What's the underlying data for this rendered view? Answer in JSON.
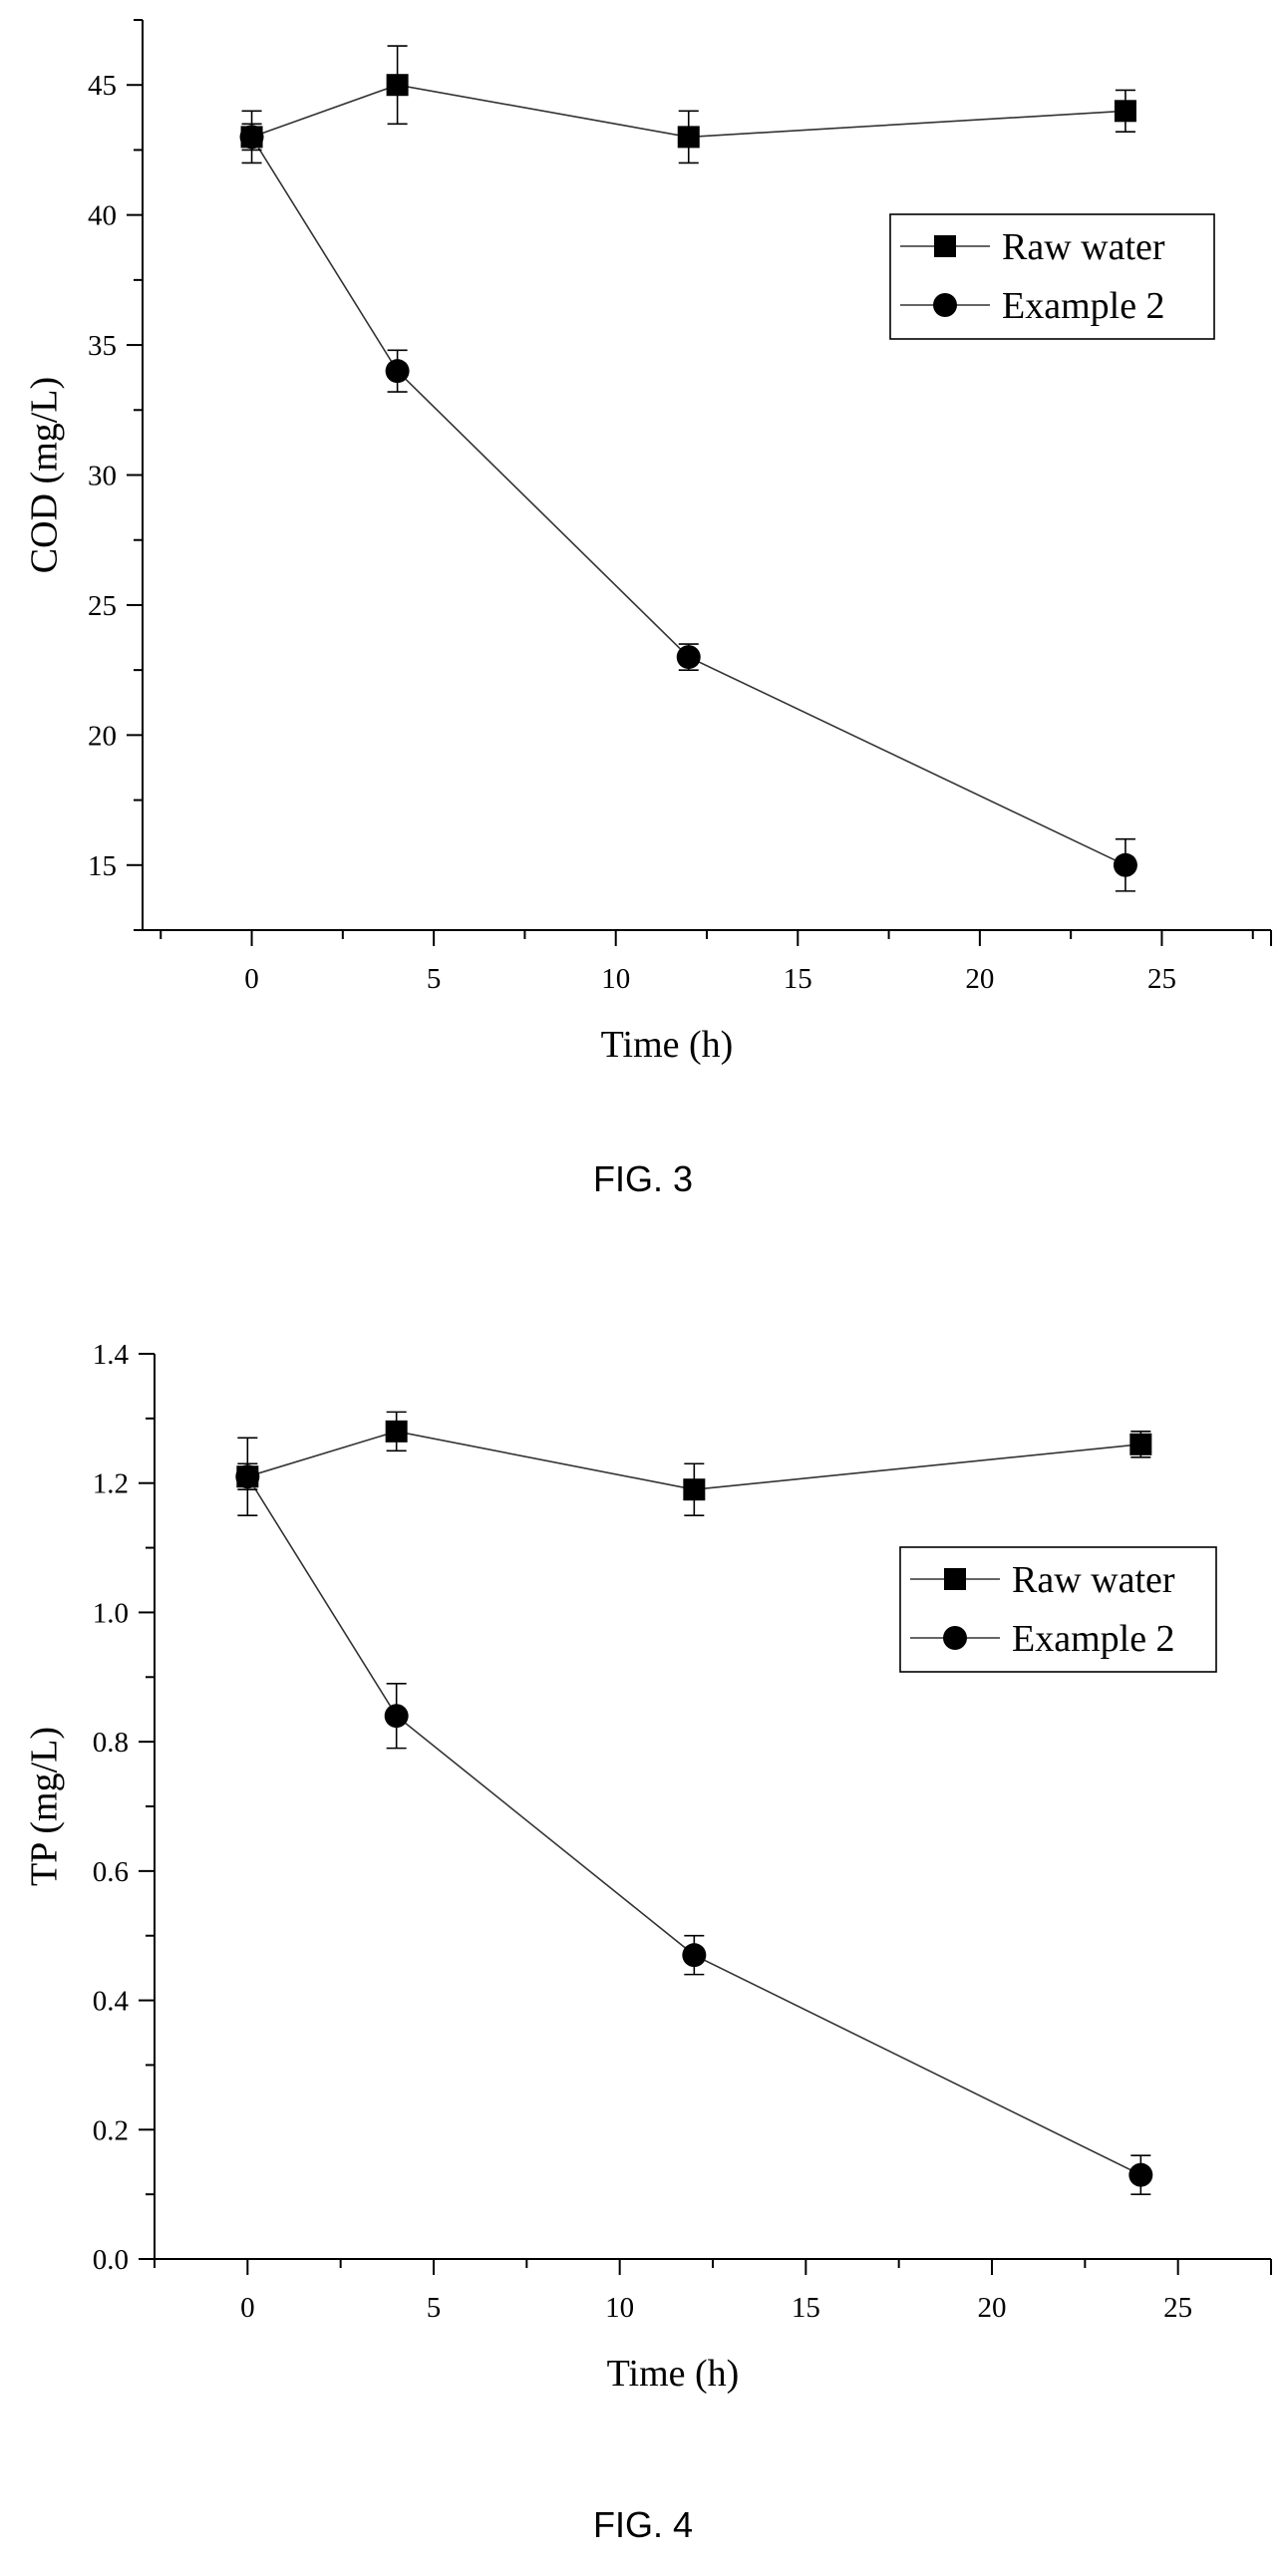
{
  "chart_data": [
    {
      "type": "line",
      "caption": "FIG. 3",
      "xlabel": "Time (h)",
      "ylabel": "COD (mg/L)",
      "xlim": [
        -3,
        28
      ],
      "ylim": [
        12.5,
        47.5
      ],
      "xticks": [
        0,
        5,
        10,
        15,
        20,
        25
      ],
      "xtick_labels": [
        "0",
        "5",
        "10",
        "15",
        "20",
        "25"
      ],
      "yticks": [
        15,
        20,
        25,
        30,
        35,
        40,
        45
      ],
      "ytick_labels": [
        "15",
        "20",
        "25",
        "30",
        "35",
        "40",
        "45"
      ],
      "grid": false,
      "legend": "upper-right",
      "series": [
        {
          "name": "Raw water",
          "marker": "square",
          "x": [
            0,
            4,
            12,
            24
          ],
          "y": [
            43,
            45,
            43,
            44
          ],
          "yerr": [
            1.0,
            1.5,
            1.0,
            0.8
          ]
        },
        {
          "name": "Example 2",
          "marker": "circle",
          "x": [
            0,
            4,
            12,
            24
          ],
          "y": [
            43,
            34,
            23,
            15
          ],
          "yerr": [
            0.5,
            0.8,
            0.5,
            1.0
          ]
        }
      ]
    },
    {
      "type": "line",
      "caption": "FIG. 4",
      "xlabel": "Time (h)",
      "ylabel": "TP (mg/L)",
      "xlim": [
        -2.5,
        27.5
      ],
      "ylim": [
        0.0,
        1.4
      ],
      "xticks": [
        0,
        5,
        10,
        15,
        20,
        25
      ],
      "xtick_labels": [
        "0",
        "5",
        "10",
        "15",
        "20",
        "25"
      ],
      "yticks": [
        0.0,
        0.2,
        0.4,
        0.6,
        0.8,
        1.0,
        1.2,
        1.4
      ],
      "ytick_labels": [
        "0.0",
        "0.2",
        "0.4",
        "0.6",
        "0.8",
        "1.0",
        "1.2",
        "1.4"
      ],
      "grid": false,
      "legend": "upper-right",
      "series": [
        {
          "name": "Raw water",
          "marker": "square",
          "x": [
            0,
            4,
            12,
            24
          ],
          "y": [
            1.21,
            1.28,
            1.19,
            1.26
          ],
          "yerr": [
            0.06,
            0.03,
            0.04,
            0.02
          ]
        },
        {
          "name": "Example 2",
          "marker": "circle",
          "x": [
            0,
            4,
            12,
            24
          ],
          "y": [
            1.21,
            0.84,
            0.47,
            0.13
          ],
          "yerr": [
            0.02,
            0.05,
            0.03,
            0.03
          ]
        }
      ]
    }
  ]
}
